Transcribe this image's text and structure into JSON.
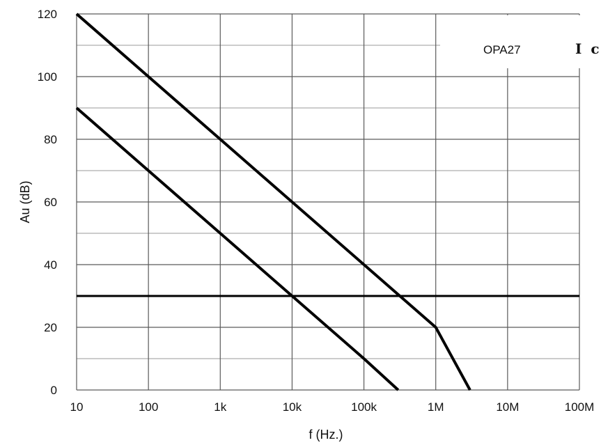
{
  "chart_data": {
    "type": "line",
    "xscale": "log",
    "xlabel": "f (Hz.)",
    "ylabel": "Au (dB)",
    "xlim": [
      10,
      100000000
    ],
    "ylim": [
      0,
      120
    ],
    "x_ticks": [
      {
        "value": 10,
        "label": "10"
      },
      {
        "value": 100,
        "label": "100"
      },
      {
        "value": 1000,
        "label": "1k"
      },
      {
        "value": 10000,
        "label": "10k"
      },
      {
        "value": 100000,
        "label": "100k"
      },
      {
        "value": 1000000,
        "label": "1M"
      },
      {
        "value": 10000000,
        "label": "10M"
      },
      {
        "value": 100000000,
        "label": "100M"
      }
    ],
    "y_ticks": [
      0,
      20,
      40,
      60,
      80,
      100,
      120
    ],
    "y_gridlines": [
      0,
      10,
      20,
      30,
      40,
      50,
      60,
      70,
      80,
      90,
      100,
      110,
      120
    ],
    "grid": true,
    "series": [
      {
        "x": [
          10,
          100,
          1000,
          10000,
          100000,
          1000000,
          3000000
        ],
        "y": [
          120,
          100,
          80,
          60,
          40,
          20,
          0
        ]
      },
      {
        "x": [
          10,
          100,
          1000,
          10000,
          100000,
          300000
        ],
        "y": [
          90,
          70,
          50,
          30,
          10,
          0
        ]
      }
    ],
    "hlines": [
      {
        "y": 30
      }
    ],
    "annotations": [
      {
        "text": "OPA27"
      },
      {
        "text": "I c"
      }
    ]
  }
}
